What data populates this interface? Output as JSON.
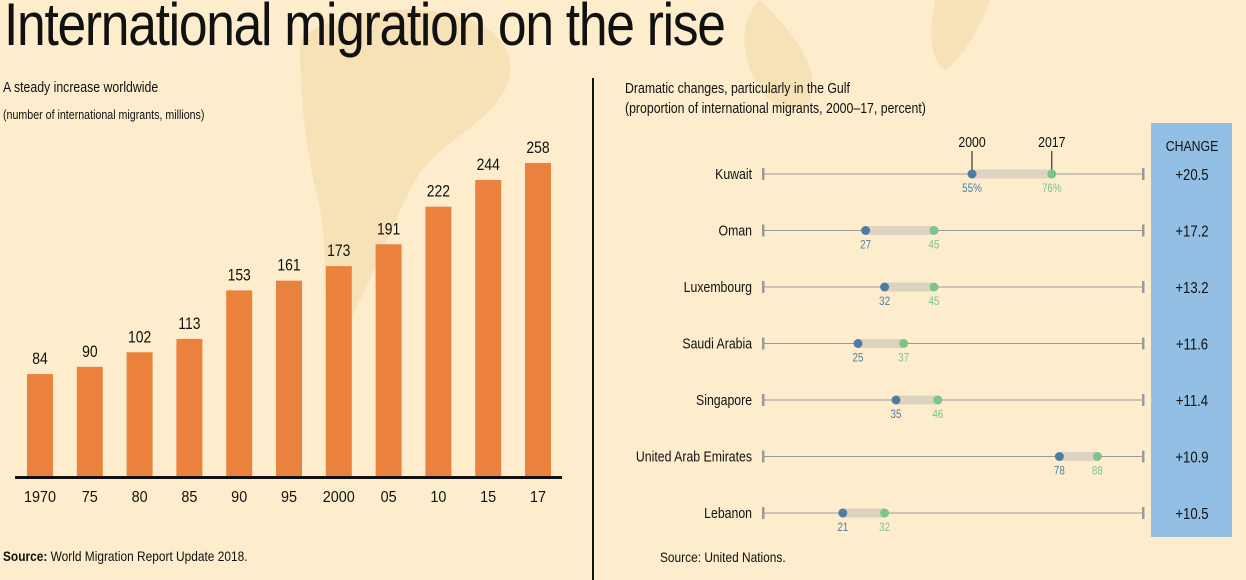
{
  "title": "International migration on the rise",
  "left_panel": {
    "subtitle": "A steady increase worldwide",
    "unit_note": "(number of international migrants, millions)",
    "source_label": "Source:",
    "source_text": "World Migration Report Update 2018."
  },
  "right_panel": {
    "subtitle": "Dramatic changes, particularly in the Gulf",
    "unit_note": "(proportion of international migrants, 2000–17, percent)",
    "source_text": "Source: United Nations.",
    "change_header": "CHANGE"
  },
  "colors": {
    "bar": "#ea823e",
    "dot_2000": "#4f7ca5",
    "dot_2017": "#79c68b",
    "change_box": "#92bfe3",
    "background": "#fdedcd"
  },
  "chart_data": [
    {
      "type": "bar",
      "title": "A steady increase worldwide",
      "subtitle": "(number of international migrants, millions)",
      "xlabel": "",
      "ylabel": "",
      "categories": [
        "1970",
        "75",
        "80",
        "85",
        "90",
        "95",
        "2000",
        "05",
        "10",
        "15",
        "17"
      ],
      "values": [
        84,
        90,
        102,
        113,
        153,
        161,
        173,
        191,
        222,
        244,
        258
      ],
      "ylim": [
        0,
        258
      ],
      "grid": false,
      "legend": "none"
    },
    {
      "type": "dumbbell",
      "title": "Dramatic changes, particularly in the Gulf",
      "subtitle": "(proportion of international migrants, 2000–17, percent)",
      "series_names": [
        "2000",
        "2017"
      ],
      "xlim": [
        0,
        100
      ],
      "rows": [
        {
          "country": "Kuwait",
          "v2000": 55,
          "v2017": 76,
          "label2000": "55%",
          "label2017": "76%",
          "change": "+20.5"
        },
        {
          "country": "Oman",
          "v2000": 27,
          "v2017": 45,
          "label2000": "27",
          "label2017": "45",
          "change": "+17.2"
        },
        {
          "country": "Luxembourg",
          "v2000": 32,
          "v2017": 45,
          "label2000": "32",
          "label2017": "45",
          "change": "+13.2"
        },
        {
          "country": "Saudi Arabia",
          "v2000": 25,
          "v2017": 37,
          "label2000": "25",
          "label2017": "37",
          "change": "+11.6"
        },
        {
          "country": "Singapore",
          "v2000": 35,
          "v2017": 46,
          "label2000": "35",
          "label2017": "46",
          "change": "+11.4"
        },
        {
          "country": "United Arab Emirates",
          "v2000": 78,
          "v2017": 88,
          "label2000": "78",
          "label2017": "88",
          "change": "+10.9"
        },
        {
          "country": "Lebanon",
          "v2000": 21,
          "v2017": 32,
          "label2000": "21",
          "label2017": "32",
          "change": "+10.5"
        }
      ]
    }
  ]
}
